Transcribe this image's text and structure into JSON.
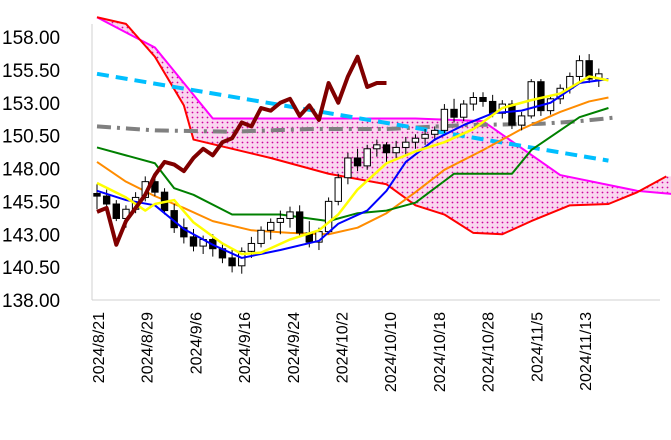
{
  "chart_data": {
    "type": "line",
    "title": "",
    "xlabel": "",
    "ylabel": "",
    "ylim": [
      138.0,
      158.0
    ],
    "yticks": [
      "158.00",
      "155.50",
      "153.00",
      "150.50",
      "148.00",
      "145.50",
      "143.00",
      "140.50",
      "138.00"
    ],
    "xticks": [
      "2024/8/21",
      "2024/8/29",
      "2024/9/6",
      "2024/9/16",
      "2024/9/24",
      "2024/10/2",
      "2024/10/10",
      "2024/10/18",
      "2024/10/28",
      "2024/11/5",
      "2024/11/13"
    ],
    "grid": false,
    "legend": "none",
    "colors": {
      "kumo_fill": "#f08cd0",
      "senkou_a": "#ff00ff",
      "senkou_b": "#ff0000",
      "tenkan": "#0000ff",
      "kijun": "#008000",
      "chikou": "#800000",
      "ma_short": "#ffff00",
      "ma_long": "#ff8c00",
      "trend_down": "#00bfff",
      "trend_flat": "#808080",
      "candle_up": "#ffffff",
      "candle_down": "#000000"
    },
    "candles": [
      [
        146.1,
        146.8,
        144.9,
        145.9
      ],
      [
        145.9,
        146.4,
        144.8,
        145.3
      ],
      [
        145.3,
        145.6,
        144.0,
        144.2
      ],
      [
        144.2,
        145.2,
        143.5,
        144.9
      ],
      [
        144.9,
        146.2,
        144.6,
        145.8
      ],
      [
        145.8,
        147.4,
        145.5,
        147.0
      ],
      [
        147.0,
        147.5,
        145.9,
        146.2
      ],
      [
        146.2,
        146.5,
        144.5,
        144.8
      ],
      [
        144.8,
        145.3,
        143.1,
        143.5
      ],
      [
        143.5,
        144.2,
        142.3,
        142.8
      ],
      [
        142.8,
        143.4,
        141.7,
        142.1
      ],
      [
        142.1,
        142.9,
        141.5,
        142.6
      ],
      [
        142.6,
        143.0,
        141.3,
        141.9
      ],
      [
        141.9,
        142.3,
        140.8,
        141.2
      ],
      [
        141.2,
        141.8,
        140.1,
        140.6
      ],
      [
        140.6,
        142.0,
        140.0,
        141.7
      ],
      [
        141.7,
        142.8,
        141.2,
        142.3
      ],
      [
        142.3,
        143.6,
        142.0,
        143.3
      ],
      [
        143.3,
        144.2,
        142.6,
        143.9
      ],
      [
        143.9,
        144.8,
        143.0,
        144.2
      ],
      [
        144.2,
        145.1,
        143.5,
        144.7
      ],
      [
        144.7,
        145.2,
        142.8,
        143.1
      ],
      [
        143.1,
        144.0,
        142.0,
        142.4
      ],
      [
        142.4,
        143.5,
        141.8,
        143.2
      ],
      [
        143.2,
        145.8,
        143.0,
        145.5
      ],
      [
        145.5,
        147.6,
        145.2,
        147.3
      ],
      [
        147.3,
        149.2,
        146.8,
        148.8
      ],
      [
        148.8,
        149.5,
        147.8,
        148.2
      ],
      [
        148.2,
        149.8,
        147.9,
        149.5
      ],
      [
        149.5,
        150.2,
        148.9,
        149.8
      ],
      [
        149.8,
        150.0,
        148.5,
        149.2
      ],
      [
        149.2,
        150.1,
        148.8,
        149.6
      ],
      [
        149.6,
        150.4,
        149.0,
        150.0
      ],
      [
        150.0,
        150.6,
        149.5,
        150.3
      ],
      [
        150.3,
        151.0,
        149.8,
        150.6
      ],
      [
        150.6,
        151.2,
        150.1,
        150.9
      ],
      [
        150.9,
        152.9,
        150.7,
        152.5
      ],
      [
        152.5,
        153.3,
        151.5,
        151.9
      ],
      [
        151.9,
        153.2,
        151.6,
        152.9
      ],
      [
        152.9,
        153.8,
        152.4,
        153.4
      ],
      [
        153.4,
        153.8,
        152.7,
        153.1
      ],
      [
        153.1,
        153.6,
        151.9,
        152.2
      ],
      [
        152.2,
        153.2,
        151.8,
        152.9
      ],
      [
        152.9,
        153.2,
        151.0,
        151.3
      ],
      [
        151.3,
        152.3,
        150.9,
        152.0
      ],
      [
        152.0,
        154.8,
        151.8,
        154.6
      ],
      [
        154.6,
        154.8,
        152.0,
        152.4
      ],
      [
        152.4,
        153.5,
        152.1,
        153.3
      ],
      [
        153.3,
        154.4,
        152.9,
        154.1
      ],
      [
        154.1,
        155.3,
        153.7,
        155.0
      ],
      [
        155.0,
        156.6,
        154.5,
        156.2
      ],
      [
        156.2,
        156.7,
        154.5,
        154.8
      ],
      [
        154.8,
        155.6,
        154.2,
        155.2
      ]
    ],
    "series": [
      {
        "key": "senkou_a",
        "values": [
          [
            0,
            159.5
          ],
          [
            6,
            157.2
          ],
          [
            12,
            151.8
          ],
          [
            25,
            151.8
          ],
          [
            33,
            151.8
          ],
          [
            40,
            151.6
          ],
          [
            48,
            147.5
          ],
          [
            56,
            146.3
          ],
          [
            62,
            145.9
          ]
        ]
      },
      {
        "key": "senkou_b",
        "values": [
          [
            0,
            159.5
          ],
          [
            3,
            159.0
          ],
          [
            6,
            156.5
          ],
          [
            9,
            152.8
          ],
          [
            10,
            150.2
          ],
          [
            18,
            148.8
          ],
          [
            24,
            147.6
          ],
          [
            30,
            146.8
          ],
          [
            33,
            145.2
          ],
          [
            36,
            144.5
          ],
          [
            39,
            143.1
          ],
          [
            42,
            143.0
          ],
          [
            45,
            144.0
          ],
          [
            49,
            145.2
          ],
          [
            53,
            145.3
          ],
          [
            56,
            146.2
          ],
          [
            59,
            147.4
          ]
        ]
      },
      {
        "key": "tenkan",
        "values": [
          [
            0,
            146.3
          ],
          [
            3,
            145.6
          ],
          [
            6,
            145.2
          ],
          [
            9,
            143.4
          ],
          [
            12,
            142.2
          ],
          [
            15,
            141.2
          ],
          [
            19,
            141.8
          ],
          [
            23,
            142.5
          ],
          [
            25,
            143.8
          ],
          [
            28,
            144.8
          ],
          [
            30,
            146.3
          ],
          [
            32,
            148.5
          ],
          [
            35,
            150.2
          ],
          [
            38,
            151.3
          ],
          [
            41,
            152.2
          ],
          [
            44,
            152.4
          ],
          [
            47,
            153.0
          ],
          [
            50,
            154.5
          ],
          [
            53,
            154.8
          ]
        ]
      },
      {
        "key": "kijun",
        "values": [
          [
            0,
            149.6
          ],
          [
            3,
            149.0
          ],
          [
            6,
            148.4
          ],
          [
            8,
            146.5
          ],
          [
            10,
            146.0
          ],
          [
            14,
            144.5
          ],
          [
            19,
            144.5
          ],
          [
            24,
            144.0
          ],
          [
            27,
            144.6
          ],
          [
            30,
            144.8
          ],
          [
            33,
            145.4
          ],
          [
            37,
            147.6
          ],
          [
            43,
            147.6
          ],
          [
            45,
            149.4
          ],
          [
            47,
            150.4
          ],
          [
            50,
            151.9
          ],
          [
            53,
            152.6
          ]
        ]
      },
      {
        "key": "chikou",
        "values": [
          [
            0,
            144.7
          ],
          [
            1,
            145.0
          ],
          [
            2,
            142.2
          ],
          [
            3,
            144.0
          ],
          [
            4,
            145.0
          ],
          [
            5,
            146.0
          ],
          [
            6,
            147.5
          ],
          [
            7,
            148.5
          ],
          [
            8,
            148.3
          ],
          [
            9,
            147.8
          ],
          [
            10,
            148.8
          ],
          [
            11,
            149.5
          ],
          [
            12,
            149.0
          ],
          [
            13,
            150.0
          ],
          [
            14,
            150.3
          ],
          [
            15,
            151.5
          ],
          [
            16,
            151.2
          ],
          [
            17,
            152.6
          ],
          [
            18,
            152.4
          ],
          [
            19,
            153.0
          ],
          [
            20,
            153.3
          ],
          [
            21,
            152.0
          ],
          [
            22,
            152.8
          ],
          [
            23,
            151.7
          ],
          [
            24,
            154.5
          ],
          [
            25,
            153.0
          ],
          [
            26,
            155.0
          ],
          [
            27,
            156.5
          ],
          [
            28,
            154.2
          ],
          [
            29,
            154.5
          ],
          [
            30,
            154.5
          ]
        ]
      },
      {
        "key": "ma_short",
        "values": [
          [
            0,
            146.9
          ],
          [
            3,
            145.8
          ],
          [
            5,
            144.8
          ],
          [
            6,
            145.3
          ],
          [
            8,
            145.6
          ],
          [
            10,
            143.9
          ],
          [
            13,
            142.3
          ],
          [
            15,
            141.5
          ],
          [
            17,
            141.6
          ],
          [
            20,
            142.6
          ],
          [
            23,
            143.3
          ],
          [
            25,
            144.5
          ],
          [
            27,
            146.4
          ],
          [
            30,
            148.4
          ],
          [
            33,
            149.3
          ],
          [
            36,
            150.0
          ],
          [
            39,
            151.0
          ],
          [
            42,
            152.6
          ],
          [
            45,
            153.2
          ],
          [
            48,
            153.7
          ],
          [
            51,
            155.0
          ],
          [
            53,
            154.7
          ]
        ]
      },
      {
        "key": "ma_long",
        "values": [
          [
            0,
            148.5
          ],
          [
            3,
            147.0
          ],
          [
            6,
            145.9
          ],
          [
            9,
            145.0
          ],
          [
            12,
            144.0
          ],
          [
            16,
            143.3
          ],
          [
            20,
            143.1
          ],
          [
            24,
            143.0
          ],
          [
            27,
            143.5
          ],
          [
            30,
            144.6
          ],
          [
            33,
            146.2
          ],
          [
            36,
            147.9
          ],
          [
            40,
            149.4
          ],
          [
            44,
            151.0
          ],
          [
            48,
            152.3
          ],
          [
            51,
            153.1
          ],
          [
            53,
            153.4
          ]
        ]
      },
      {
        "key": "trend_down",
        "values": [
          [
            0,
            155.2
          ],
          [
            53,
            148.6
          ]
        ]
      },
      {
        "key": "trend_flat",
        "values": [
          [
            0,
            151.2
          ],
          [
            6,
            150.9
          ],
          [
            14,
            150.8
          ],
          [
            22,
            151.0
          ],
          [
            30,
            151.0
          ],
          [
            38,
            151.3
          ],
          [
            46,
            151.4
          ],
          [
            50,
            151.6
          ],
          [
            54,
            151.9
          ]
        ]
      }
    ]
  }
}
